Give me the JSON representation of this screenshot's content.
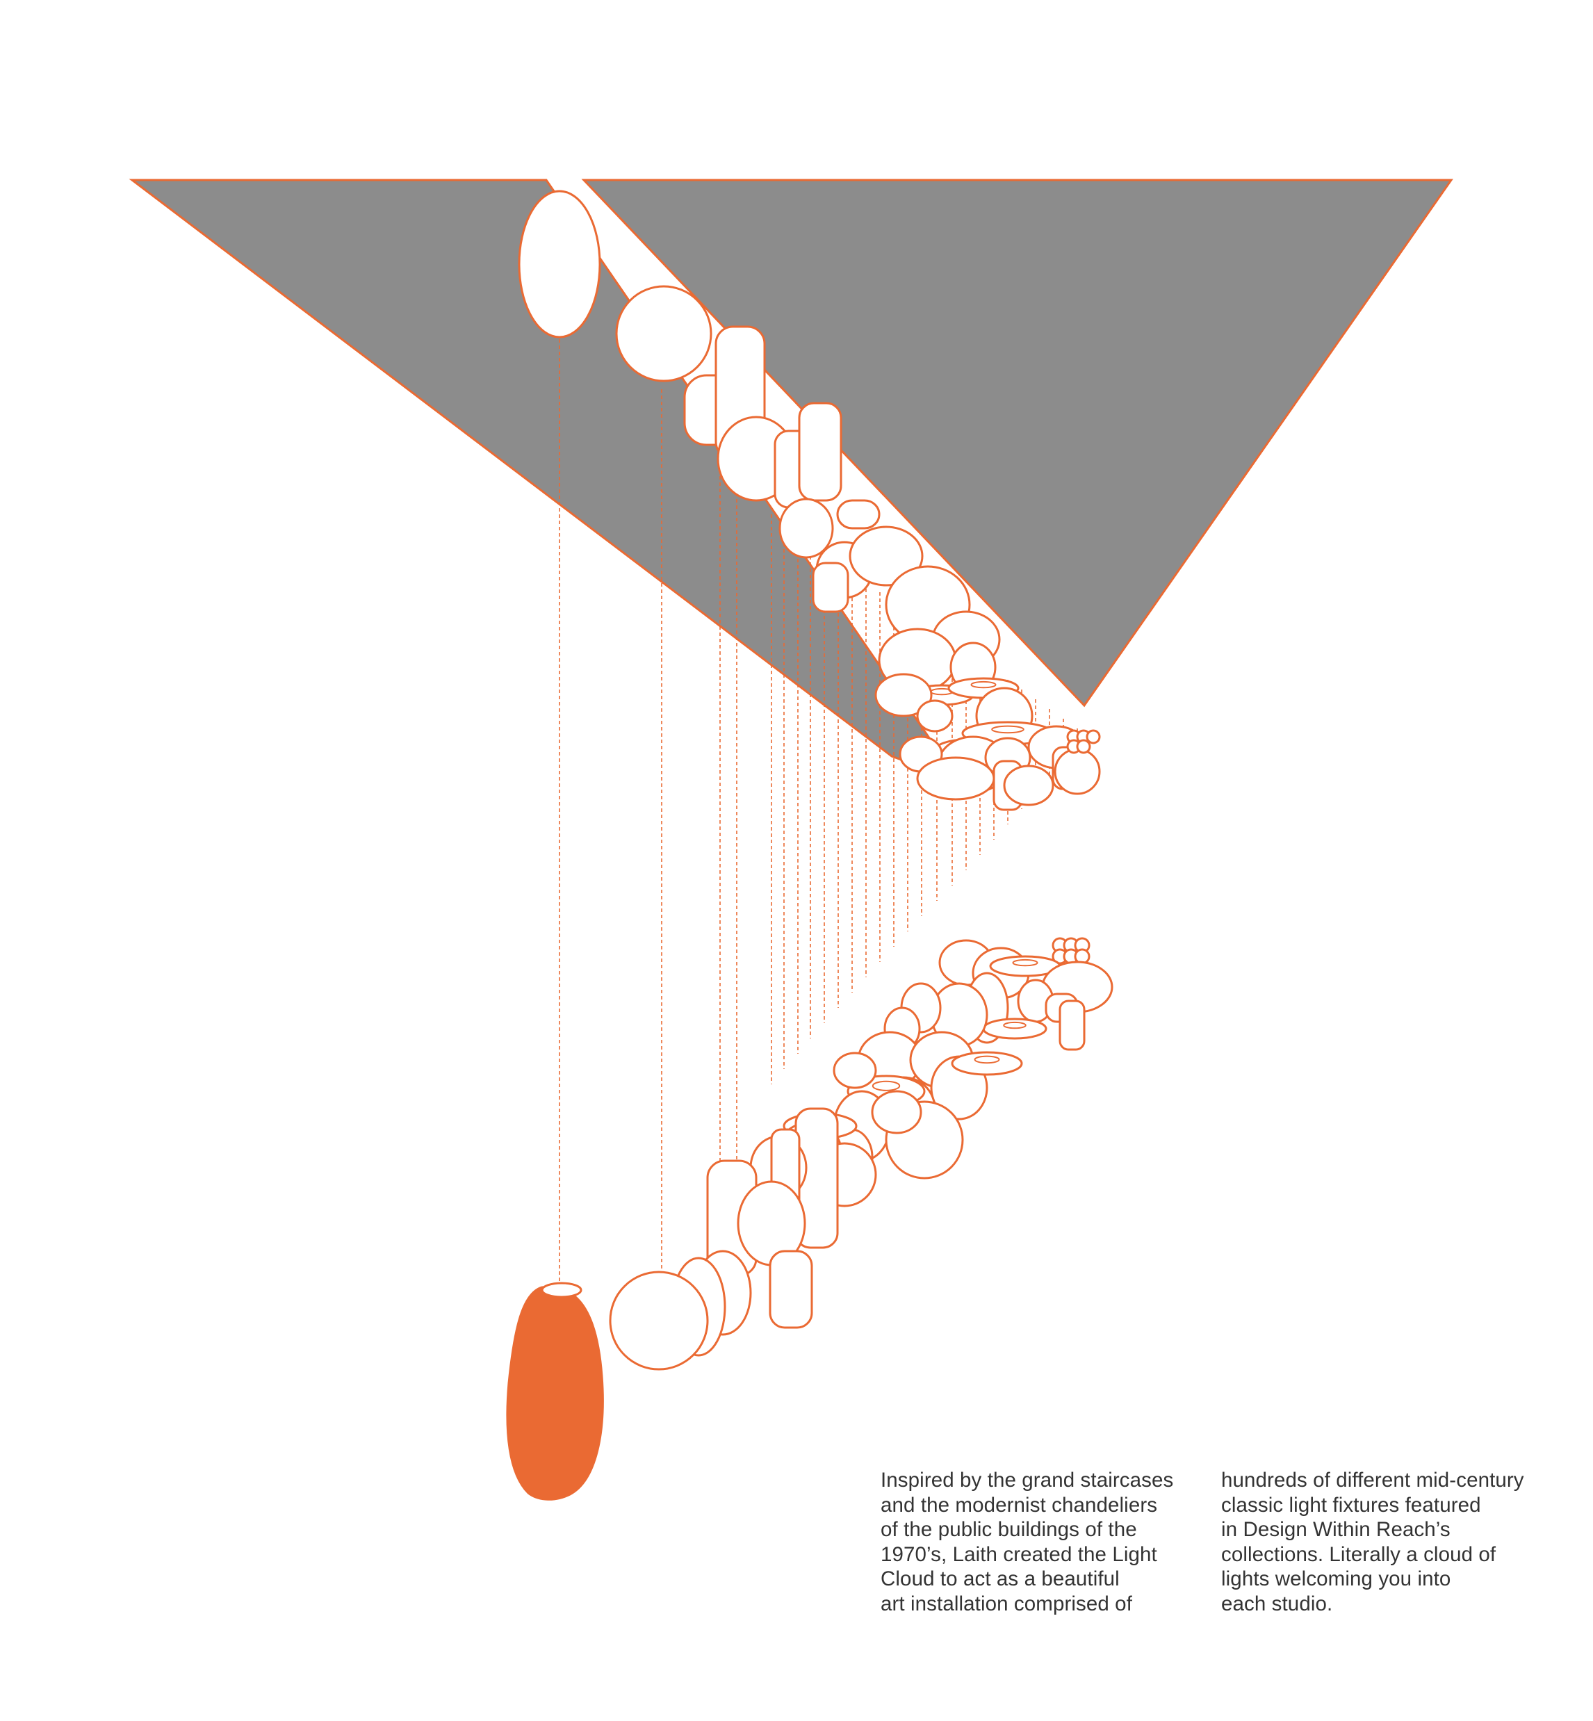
{
  "colors": {
    "accent": "#ea6a33",
    "ceiling_fill": "#8c8c8c",
    "background": "#ffffff",
    "text": "#333333"
  },
  "illustration": {
    "subject": "Light Cloud chandelier installation suspended from a sloped ceiling",
    "highlighted_fixture_icon": "solid-orange-pendant-icon"
  },
  "caption": {
    "column_1": "Inspired by the grand staircases\nand the modernist chandeliers\nof the public buildings of the\n1970’s, Laith created the Light\nCloud to act as a beautiful\nart installation comprised of",
    "column_2": "hundreds of different mid-century\nclassic light fixtures featured\nin Design Within Reach’s\ncollections. Literally a cloud of\nlights welcoming you into\neach studio."
  }
}
